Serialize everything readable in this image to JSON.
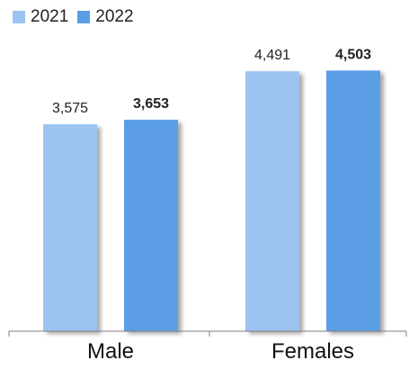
{
  "chart_data": {
    "type": "bar",
    "categories": [
      "Male",
      "Females"
    ],
    "series": [
      {
        "name": "2021",
        "values": [
          3575,
          4491
        ],
        "labels": [
          "3,575",
          "4,491"
        ],
        "color": "#9dc3f0"
      },
      {
        "name": "2022",
        "values": [
          3653,
          4503
        ],
        "labels": [
          "3,653",
          "4,503"
        ],
        "color": "#5c9ee6"
      }
    ],
    "ylim": [
      0,
      5100
    ],
    "legend_position": "top-left",
    "grid": false
  }
}
